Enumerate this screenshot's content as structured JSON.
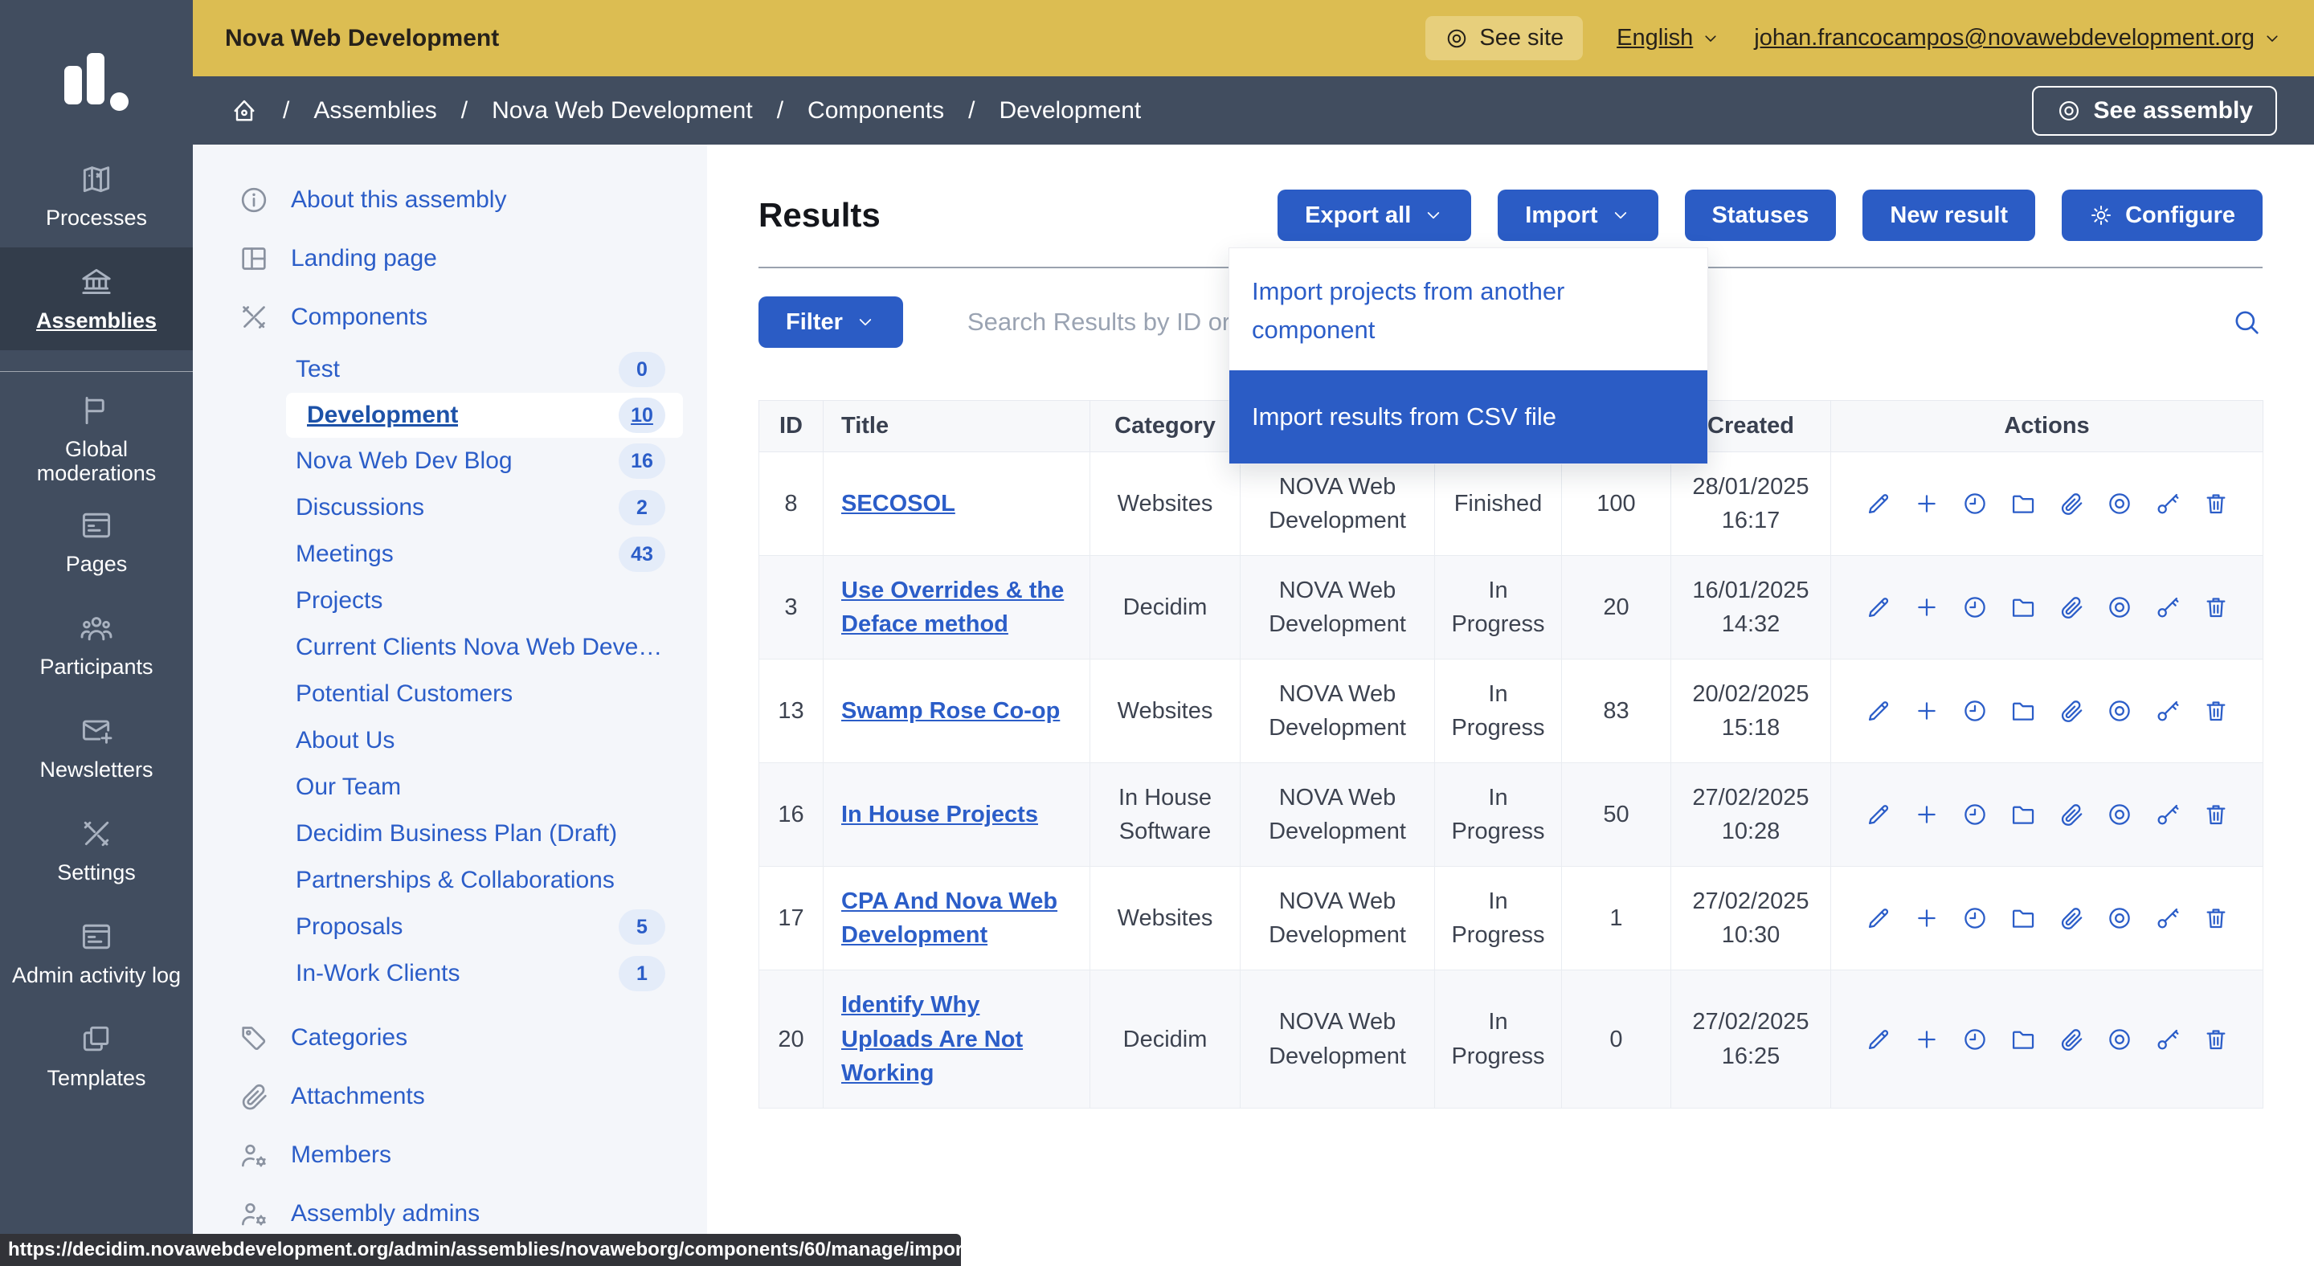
{
  "top_bar": {
    "title": "Nova Web Development",
    "see_site": "See site",
    "language": "English",
    "user_email": "johan.francocampos@novawebdevelopment.org"
  },
  "breadcrumb": {
    "home_icon": "home-icon",
    "items": [
      "Assemblies",
      "Nova Web Development",
      "Components",
      "Development"
    ],
    "see_assembly": "See assembly"
  },
  "primary_sidebar": {
    "items": [
      {
        "icon": "map-icon",
        "label": "Processes"
      },
      {
        "icon": "bank-icon",
        "label": "Assemblies",
        "active": true
      },
      {
        "icon": "flag-icon",
        "label": "Global moderations",
        "divider_before": true
      },
      {
        "icon": "pages-icon",
        "label": "Pages"
      },
      {
        "icon": "team-icon",
        "label": "Participants"
      },
      {
        "icon": "mail-plus-icon",
        "label": "Newsletters"
      },
      {
        "icon": "tools-icon",
        "label": "Settings"
      },
      {
        "icon": "activity-log-icon",
        "label": "Admin activity log"
      },
      {
        "icon": "copy-icon",
        "label": "Templates"
      }
    ]
  },
  "secondary_sidebar": {
    "top": [
      {
        "icon": "info-icon",
        "label": "About this assembly"
      },
      {
        "icon": "layout-icon",
        "label": "Landing page"
      },
      {
        "icon": "tools-icon",
        "label": "Components"
      }
    ],
    "components": [
      {
        "label": "Test",
        "count": "0"
      },
      {
        "label": "Development",
        "count": "10",
        "active": true
      },
      {
        "label": "Nova Web Dev Blog",
        "count": "16"
      },
      {
        "label": "Discussions",
        "count": "2"
      },
      {
        "label": "Meetings",
        "count": "43"
      },
      {
        "label": "Projects"
      },
      {
        "label": "Current Clients Nova Web Development"
      },
      {
        "label": "Potential Customers"
      },
      {
        "label": "About Us"
      },
      {
        "label": "Our Team"
      },
      {
        "label": "Decidim Business Plan (Draft)"
      },
      {
        "label": "Partnerships & Collaborations"
      },
      {
        "label": "Proposals",
        "count": "5"
      },
      {
        "label": "In-Work Clients",
        "count": "1"
      }
    ],
    "bottom": [
      {
        "icon": "tag-icon",
        "label": "Categories"
      },
      {
        "icon": "paperclip-icon",
        "label": "Attachments"
      },
      {
        "icon": "user-gear-icon",
        "label": "Members"
      },
      {
        "icon": "user-gear-icon",
        "label": "Assembly admins"
      }
    ]
  },
  "main": {
    "title": "Results",
    "toolbar": {
      "export_all": "Export all",
      "import": "Import",
      "statuses": "Statuses",
      "new_result": "New result",
      "configure": "Configure"
    },
    "import_menu": {
      "items": [
        {
          "label": "Import projects from another component"
        },
        {
          "label": "Import results from CSV file",
          "highlighted": true
        }
      ]
    },
    "filter": {
      "label": "Filter",
      "search_placeholder": "Search Results by ID or title"
    },
    "table": {
      "headers": [
        "ID",
        "Title",
        "Category",
        "",
        "",
        "",
        "Created",
        "Actions"
      ],
      "action_icons": [
        "pencil-icon",
        "plus-icon",
        "clock-icon",
        "folder-icon",
        "paperclip-icon",
        "eye-icon",
        "key-icon",
        "trash-icon"
      ],
      "rows": [
        {
          "id": "8",
          "title": "SECOSOL",
          "category": "Websites",
          "scope": "NOVA Web Development",
          "status": "Finished",
          "progress": "100",
          "created": "28/01/2025 16:17"
        },
        {
          "id": "3",
          "title": "Use Overrides & the Deface method",
          "category": "Decidim",
          "scope": "NOVA Web Development",
          "status": "In Progress",
          "progress": "20",
          "created": "16/01/2025 14:32"
        },
        {
          "id": "13",
          "title": "Swamp Rose Co-op",
          "category": "Websites",
          "scope": "NOVA Web Development",
          "status": "In Progress",
          "progress": "83",
          "created": "20/02/2025 15:18"
        },
        {
          "id": "16",
          "title": "In House Projects",
          "category": "In House Software",
          "scope": "NOVA Web Development",
          "status": "In Progress",
          "progress": "50",
          "created": "27/02/2025 10:28"
        },
        {
          "id": "17",
          "title": "CPA And Nova Web Development",
          "category": "Websites",
          "scope": "NOVA Web Development",
          "status": "In Progress",
          "progress": "1",
          "created": "27/02/2025 10:30"
        },
        {
          "id": "20",
          "title": "Identify Why Uploads Are Not Working",
          "category": "Decidim",
          "scope": "NOVA Web Development",
          "status": "In Progress",
          "progress": "0",
          "created": "27/02/2025 16:25"
        }
      ]
    }
  },
  "status_bar": {
    "url": "https://decidim.novawebdevelopment.org/admin/assemblies/novaweborg/components/60/manage/import_results"
  },
  "colors": {
    "gold": "#dcbd52",
    "navy": "#414d5f",
    "navy_active": "#333d4b",
    "accent_blue": "#2b5cc5",
    "link_blue": "#2b5dc8",
    "badge_bg": "#e4ecf9"
  }
}
